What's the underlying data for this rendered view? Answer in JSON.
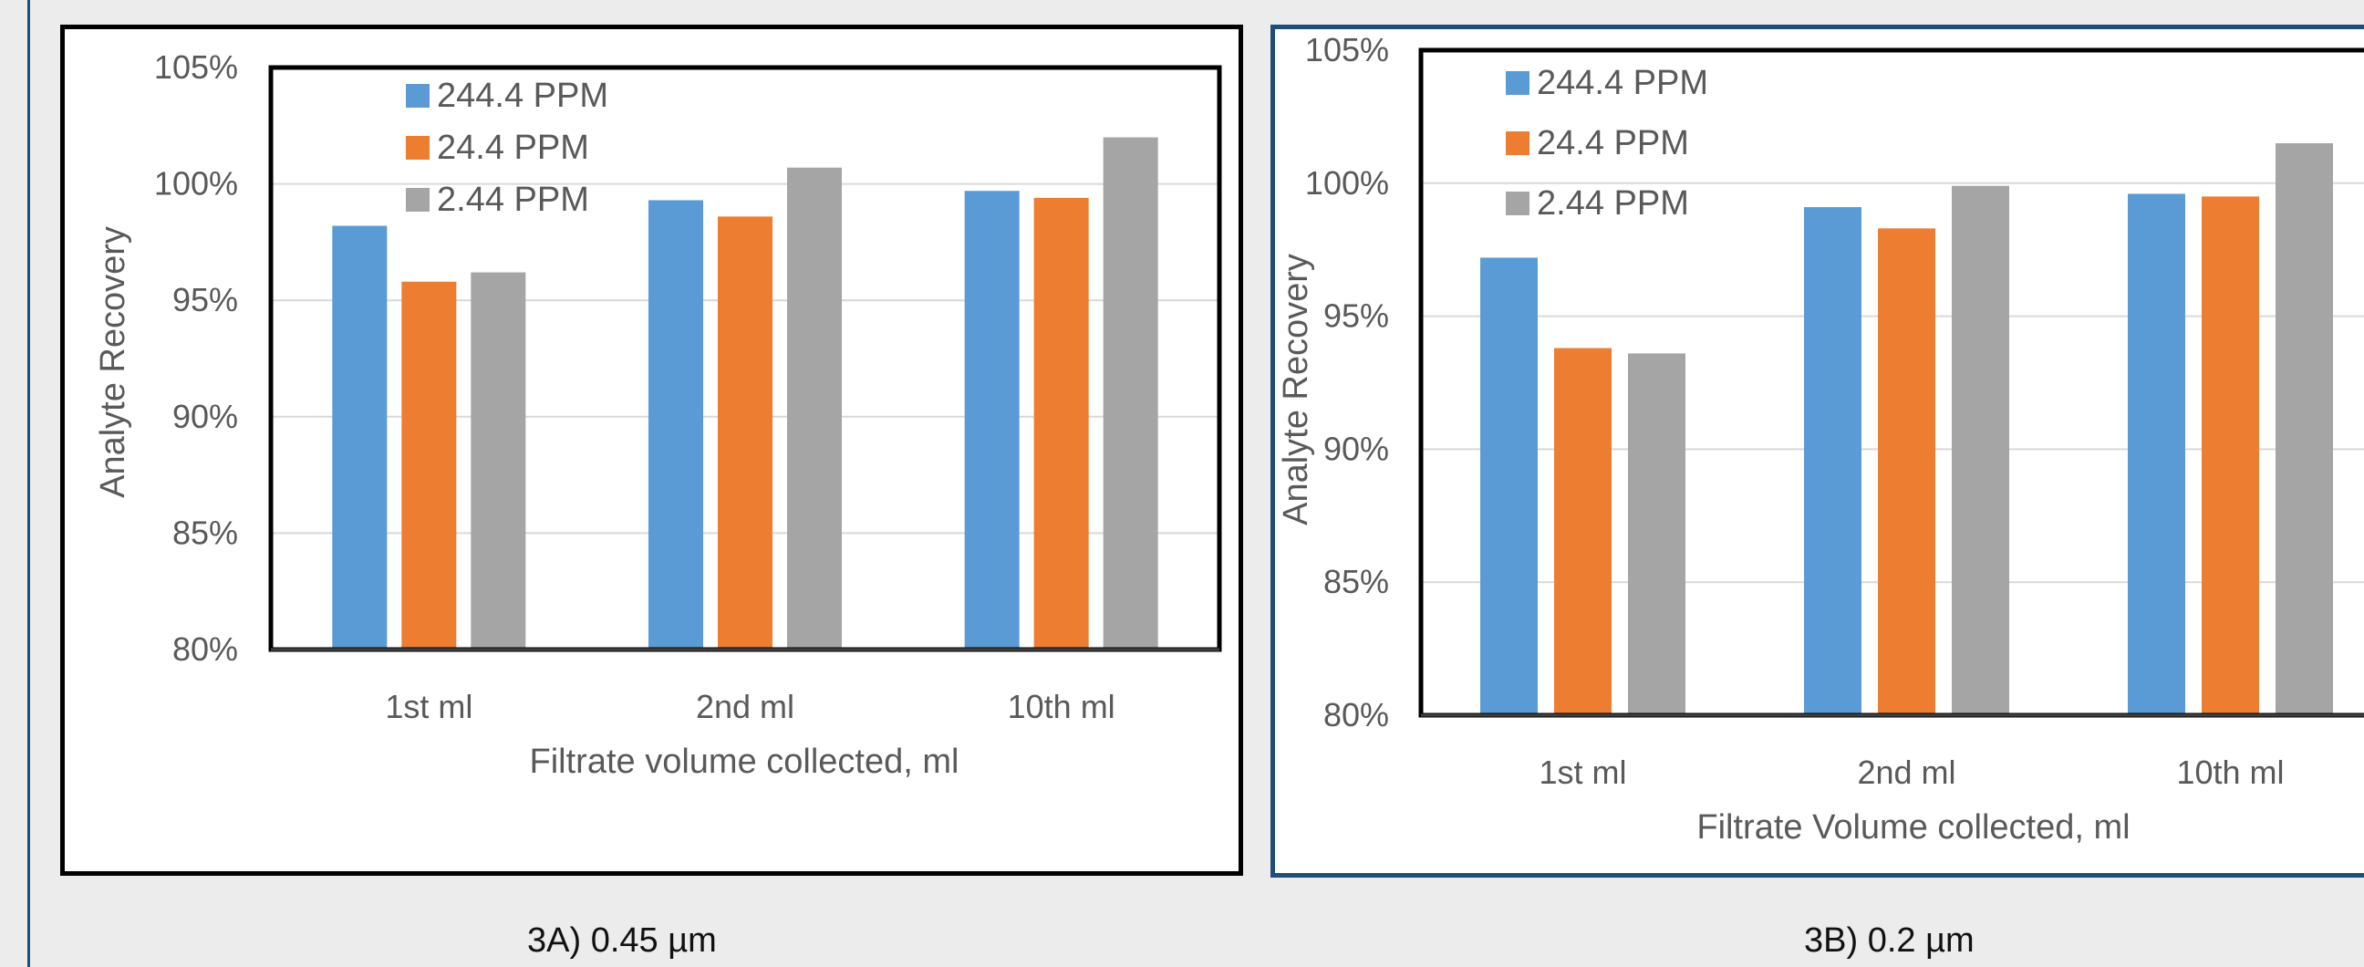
{
  "chart_data": [
    {
      "type": "bar",
      "title": "",
      "xlabel": "Filtrate volume collected, ml",
      "ylabel": "Analyte Recovery",
      "categories": [
        "1st ml",
        "2nd ml",
        "10th ml"
      ],
      "series": [
        {
          "name": "244.4 PPM",
          "values": [
            98.2,
            99.3,
            99.7
          ]
        },
        {
          "name": "24.4 PPM",
          "values": [
            95.8,
            98.6,
            99.4
          ]
        },
        {
          "name": "2.44 PPM",
          "values": [
            96.2,
            100.7,
            102.0
          ]
        }
      ],
      "ylim": [
        80,
        105
      ],
      "yticks": [
        "80%",
        "85%",
        "90%",
        "95%",
        "100%",
        "105%"
      ],
      "grid": true,
      "legend": "top-left",
      "caption": "3A) 0.45 µm"
    },
    {
      "type": "bar",
      "title": "",
      "xlabel": "Filtrate Volume collected, ml",
      "ylabel": "Analyte Recovery",
      "categories": [
        "1st ml",
        "2nd ml",
        "10th ml"
      ],
      "series": [
        {
          "name": "244.4 PPM",
          "values": [
            97.2,
            99.1,
            99.6
          ]
        },
        {
          "name": "24.4 PPM",
          "values": [
            93.8,
            98.3,
            99.5
          ]
        },
        {
          "name": "2.44 PPM",
          "values": [
            93.6,
            99.9,
            101.5
          ]
        }
      ],
      "ylim": [
        80,
        105
      ],
      "yticks": [
        "80%",
        "85%",
        "90%",
        "95%",
        "100%",
        "105%"
      ],
      "grid": true,
      "legend": "top-left",
      "caption": "3B) 0.2 µm"
    }
  ],
  "colors": {
    "series": [
      "#5b9bd5",
      "#ed7d31",
      "#a5a5a5"
    ],
    "gridline": "#d9d9d9",
    "text": "#595959"
  }
}
